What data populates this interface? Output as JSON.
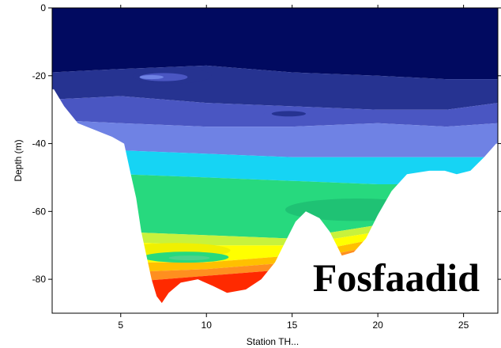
{
  "chart_data": {
    "type": "heatmap",
    "title": "Fosfaadid",
    "xlabel": "Station TH...",
    "ylabel": "Depth (m)",
    "xlim": [
      1,
      27
    ],
    "ylim": [
      -90,
      0
    ],
    "x_ticks": [
      5,
      10,
      15,
      20,
      25
    ],
    "x_tick_labels": [
      "5",
      "10",
      "15",
      "20",
      "25"
    ],
    "y_ticks": [
      0,
      -20,
      -40,
      -60,
      -80
    ],
    "y_tick_labels": [
      "0",
      "-20",
      "-40",
      "-60",
      "-80"
    ],
    "grid": false,
    "legend": "none",
    "bottom_profile": [
      [
        1.1,
        -24
      ],
      [
        1.7,
        -29
      ],
      [
        2.5,
        -34
      ],
      [
        3.5,
        -36
      ],
      [
        4.5,
        -38
      ],
      [
        5.2,
        -40
      ],
      [
        5.5,
        -47
      ],
      [
        5.9,
        -56
      ],
      [
        6.2,
        -66
      ],
      [
        6.5,
        -73
      ],
      [
        6.8,
        -80
      ],
      [
        7.1,
        -85
      ],
      [
        7.4,
        -87
      ],
      [
        7.8,
        -84
      ],
      [
        8.5,
        -81
      ],
      [
        9.5,
        -80
      ],
      [
        10.4,
        -82
      ],
      [
        11.2,
        -84
      ],
      [
        12.3,
        -83
      ],
      [
        13.2,
        -80
      ],
      [
        14.0,
        -75
      ],
      [
        14.6,
        -69
      ],
      [
        15.2,
        -63
      ],
      [
        15.8,
        -60
      ],
      [
        16.6,
        -62
      ],
      [
        17.2,
        -66
      ],
      [
        17.9,
        -73
      ],
      [
        18.6,
        -72
      ],
      [
        19.3,
        -68
      ],
      [
        20.0,
        -61
      ],
      [
        20.8,
        -54
      ],
      [
        21.7,
        -49
      ],
      [
        23.0,
        -48
      ],
      [
        23.9,
        -48
      ],
      [
        24.6,
        -49
      ],
      [
        25.4,
        -48
      ],
      [
        26.2,
        -44
      ],
      [
        26.9,
        -40
      ]
    ],
    "contour_bands": [
      {
        "color": "#010a60",
        "top": [
          [
            1,
            0
          ],
          [
            27,
            0
          ]
        ],
        "bottom": [
          [
            1,
            -19
          ],
          [
            5,
            -18
          ],
          [
            10,
            -17
          ],
          [
            15,
            -19
          ],
          [
            20,
            -20
          ],
          [
            24,
            -21
          ],
          [
            27,
            -21
          ]
        ]
      },
      {
        "color": "#263391",
        "top": [
          [
            1,
            -19
          ],
          [
            5,
            -18
          ],
          [
            10,
            -17
          ],
          [
            15,
            -19
          ],
          [
            20,
            -20
          ],
          [
            24,
            -21
          ],
          [
            27,
            -21
          ]
        ],
        "bottom": [
          [
            1,
            -27
          ],
          [
            5,
            -26
          ],
          [
            10,
            -28
          ],
          [
            15,
            -29
          ],
          [
            20,
            -30
          ],
          [
            24,
            -30
          ],
          [
            27,
            -28
          ]
        ]
      },
      {
        "color": "#4a56c2",
        "top": [
          [
            1,
            -27
          ],
          [
            5,
            -26
          ],
          [
            10,
            -28
          ],
          [
            15,
            -29
          ],
          [
            20,
            -30
          ],
          [
            24,
            -30
          ],
          [
            27,
            -28
          ]
        ],
        "bottom": [
          [
            1,
            -33
          ],
          [
            5,
            -34
          ],
          [
            10,
            -35
          ],
          [
            15,
            -35
          ],
          [
            20,
            -34
          ],
          [
            24,
            -35
          ],
          [
            27,
            -34
          ]
        ]
      },
      {
        "color": "#6f82e4",
        "top": [
          [
            1,
            -33
          ],
          [
            5,
            -34
          ],
          [
            10,
            -35
          ],
          [
            15,
            -35
          ],
          [
            20,
            -34
          ],
          [
            24,
            -35
          ],
          [
            27,
            -34
          ]
        ],
        "bottom": [
          [
            1,
            -42
          ],
          [
            5,
            -42
          ],
          [
            10,
            -43
          ],
          [
            15,
            -44
          ],
          [
            20,
            -44
          ],
          [
            24,
            -44
          ],
          [
            27,
            -44
          ]
        ]
      },
      {
        "color": "#16d4f4",
        "top": [
          [
            1,
            -42
          ],
          [
            5,
            -42
          ],
          [
            10,
            -43
          ],
          [
            15,
            -44
          ],
          [
            20,
            -44
          ],
          [
            24,
            -44
          ],
          [
            27,
            -44
          ]
        ],
        "bottom": [
          [
            1,
            -49
          ],
          [
            5,
            -49
          ],
          [
            10,
            -50
          ],
          [
            15,
            -51
          ],
          [
            20,
            -52
          ],
          [
            24,
            -52
          ],
          [
            27,
            -52
          ]
        ]
      },
      {
        "color": "#27d97e",
        "top": [
          [
            1,
            -49
          ],
          [
            5,
            -49
          ],
          [
            10,
            -50
          ],
          [
            15,
            -51
          ],
          [
            20,
            -52
          ],
          [
            24,
            -52
          ],
          [
            27,
            -52
          ]
        ],
        "bottom": [
          [
            1,
            -65
          ],
          [
            5,
            -66
          ],
          [
            10,
            -67
          ],
          [
            15,
            -68
          ],
          [
            20,
            -64
          ],
          [
            24,
            -62
          ],
          [
            27,
            -62
          ]
        ]
      },
      {
        "color": "#c8f23c",
        "top": [
          [
            1,
            -65
          ],
          [
            5,
            -66
          ],
          [
            10,
            -67
          ],
          [
            15,
            -68
          ],
          [
            20,
            -64
          ],
          [
            24,
            -62
          ],
          [
            27,
            -62
          ]
        ],
        "bottom": [
          [
            1,
            -69
          ],
          [
            5,
            -69
          ],
          [
            10,
            -70
          ],
          [
            15,
            -70
          ],
          [
            20,
            -66
          ],
          [
            24,
            -65
          ],
          [
            27,
            -65
          ]
        ]
      },
      {
        "color": "#ffff00",
        "top": [
          [
            1,
            -69
          ],
          [
            5,
            -69
          ],
          [
            10,
            -70
          ],
          [
            15,
            -70
          ],
          [
            20,
            -66
          ],
          [
            24,
            -65
          ],
          [
            27,
            -65
          ]
        ],
        "bottom": [
          [
            1,
            -75
          ],
          [
            5,
            -75
          ],
          [
            10,
            -75
          ],
          [
            15,
            -73
          ],
          [
            20,
            -68
          ],
          [
            24,
            -68
          ],
          [
            27,
            -68
          ]
        ]
      },
      {
        "color": "#ffc000",
        "top": [
          [
            1,
            -75
          ],
          [
            5,
            -75
          ],
          [
            10,
            -75
          ],
          [
            15,
            -73
          ],
          [
            20,
            -68
          ],
          [
            24,
            -68
          ],
          [
            27,
            -68
          ]
        ],
        "bottom": [
          [
            1,
            -78
          ],
          [
            5,
            -78
          ],
          [
            10,
            -77
          ],
          [
            15,
            -75
          ],
          [
            20,
            -70
          ],
          [
            24,
            -70
          ],
          [
            27,
            -70
          ]
        ]
      },
      {
        "color": "#ff8f1f",
        "top": [
          [
            1,
            -78
          ],
          [
            5,
            -78
          ],
          [
            10,
            -77
          ],
          [
            15,
            -75
          ],
          [
            20,
            -70
          ],
          [
            24,
            -70
          ],
          [
            27,
            -70
          ]
        ],
        "bottom": [
          [
            1,
            -81
          ],
          [
            5,
            -81
          ],
          [
            10,
            -79
          ],
          [
            15,
            -77
          ],
          [
            20,
            -72
          ],
          [
            24,
            -72
          ],
          [
            27,
            -72
          ]
        ]
      },
      {
        "color": "#ff2a00",
        "top": [
          [
            1,
            -81
          ],
          [
            5,
            -81
          ],
          [
            10,
            -79
          ],
          [
            15,
            -77
          ],
          [
            20,
            -72
          ],
          [
            24,
            -72
          ],
          [
            27,
            -72
          ]
        ],
        "bottom": [
          [
            1,
            -90
          ],
          [
            5,
            -90
          ],
          [
            10,
            -90
          ],
          [
            15,
            -90
          ],
          [
            20,
            -90
          ],
          [
            24,
            -90
          ],
          [
            27,
            -90
          ]
        ]
      }
    ],
    "features": [
      {
        "color": "#f0f000",
        "shape": "ellipse",
        "cx": 8.2,
        "cy": -71.5,
        "rx": 3.2,
        "ry": 2.2
      },
      {
        "color": "#27d97e",
        "shape": "ellipse",
        "cx": 8.8,
        "cy": -73.5,
        "rx": 2.5,
        "ry": 1.6
      },
      {
        "color": "#4cd38d",
        "shape": "ellipse",
        "cx": 9.0,
        "cy": -73.7,
        "rx": 1.2,
        "ry": 0.7
      },
      {
        "color": "#1fc274",
        "shape": "ellipse",
        "cx": 18.8,
        "cy": -59.5,
        "rx": 4.2,
        "ry": 3.3
      },
      {
        "color": "#263391",
        "shape": "ellipse",
        "cx": 8.0,
        "cy": -20.0,
        "rx": 2.3,
        "ry": 2.3
      },
      {
        "color": "#4a56c2",
        "shape": "ellipse",
        "cx": 7.5,
        "cy": -20.4,
        "rx": 1.4,
        "ry": 1.2
      },
      {
        "color": "#6f82e4",
        "shape": "ellipse",
        "cx": 6.8,
        "cy": -20.4,
        "rx": 0.7,
        "ry": 0.6
      },
      {
        "color": "#4a56c2",
        "shape": "ellipse",
        "cx": 15.5,
        "cy": -31.5,
        "rx": 2.2,
        "ry": 1.4
      },
      {
        "color": "#263391",
        "shape": "ellipse",
        "cx": 14.8,
        "cy": -31.2,
        "rx": 1.0,
        "ry": 0.8
      }
    ]
  }
}
